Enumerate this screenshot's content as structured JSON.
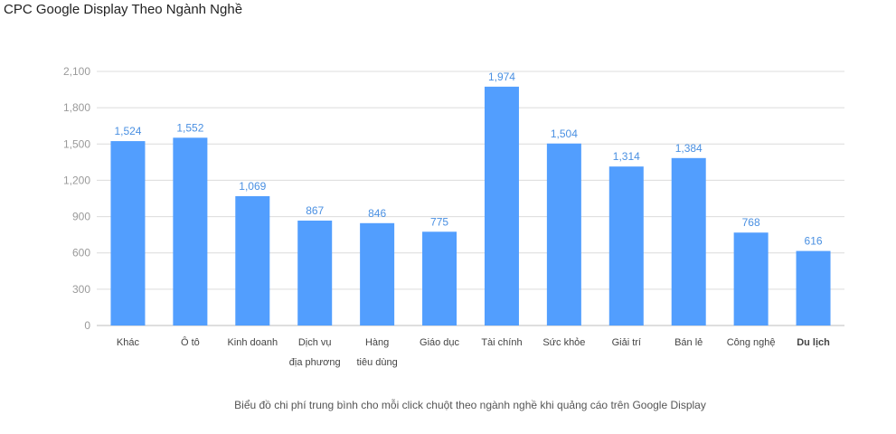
{
  "title": "CPC Google Display Theo Ngành Nghề",
  "caption": "Biểu đồ chi phí trung bình cho mỗi click chuột theo ngành nghề khi quảng cáo trên Google Display",
  "chart_data": {
    "type": "bar",
    "categories": [
      [
        "Khác"
      ],
      [
        "Ô tô"
      ],
      [
        "Kinh doanh"
      ],
      [
        "Dịch vụ",
        "địa phương"
      ],
      [
        "Hàng",
        "tiêu dùng"
      ],
      [
        "Giáo dục"
      ],
      [
        "Tài chính"
      ],
      [
        "Sức khỏe"
      ],
      [
        "Giải trí"
      ],
      [
        "Bán lẻ"
      ],
      [
        "Công nghệ"
      ],
      [
        "Du lịch"
      ]
    ],
    "values": [
      1524,
      1552,
      1069,
      867,
      846,
      775,
      1974,
      1504,
      1314,
      1384,
      768,
      616
    ],
    "data_labels": [
      "1,524",
      "1,552",
      "1,069",
      "867",
      "846",
      "775",
      "1,974",
      "1,504",
      "1,314",
      "1,384",
      "768",
      "616"
    ],
    "yticks": [
      0,
      300,
      600,
      900,
      1200,
      1500,
      1800,
      2100
    ],
    "ytick_labels": [
      "0",
      "300",
      "600",
      "900",
      "1,200",
      "1,500",
      "1,800",
      "2,100"
    ],
    "ylim": [
      0,
      2100
    ],
    "grid": true,
    "bold_category_index": 11,
    "bar_color": "#529efe",
    "label_color": "#4a90e2"
  }
}
